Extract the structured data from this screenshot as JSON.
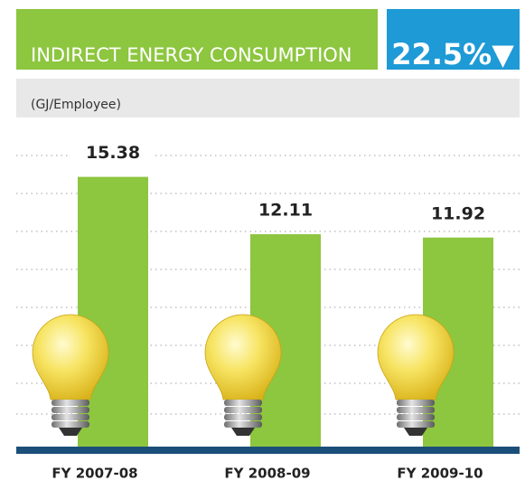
{
  "chart_data": {
    "type": "bar",
    "title": "INDIRECT ENERGY CONSUMPTION",
    "badge": "22.5%▼",
    "unit_label": "(GJ/Employee)",
    "categories": [
      "FY 2007-08",
      "FY 2008-09",
      "FY 2009-10"
    ],
    "values": [
      15.38,
      12.11,
      11.92
    ],
    "color": "#8dc63f"
  }
}
